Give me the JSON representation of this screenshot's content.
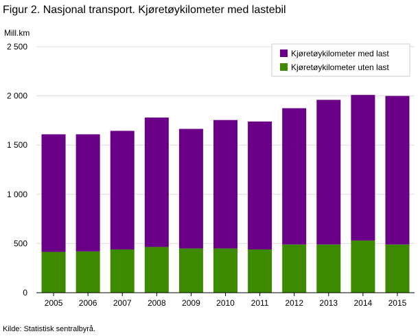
{
  "title": "Figur 2. Nasjonal transport. Kjøretøykilometer med lastebil",
  "source": "Kilde: Statistisk sentralbyrå.",
  "chart_data": {
    "type": "bar",
    "stacked": true,
    "title": "Figur 2. Nasjonal transport. Kjøretøykilometer med lastebil",
    "ylabel": "Mill.km",
    "xlabel": "",
    "ylim": [
      0,
      2500
    ],
    "yticks": [
      0,
      500,
      1000,
      1500,
      2000,
      2500
    ],
    "ytick_labels": [
      "0",
      "500",
      "1 000",
      "1 500",
      "2 000",
      "2 500"
    ],
    "grid": true,
    "legend_position": "top-right",
    "categories": [
      "2005",
      "2006",
      "2007",
      "2008",
      "2009",
      "2010",
      "2011",
      "2012",
      "2013",
      "2014",
      "2015"
    ],
    "series": [
      {
        "name": "Kjøretøykilometer uten last",
        "color": "#3d8a00",
        "values": [
          415,
          420,
          440,
          465,
          450,
          450,
          440,
          490,
          490,
          530,
          490
        ]
      },
      {
        "name": "Kjøretøykilometer med last",
        "color": "#6a0088",
        "values": [
          1195,
          1190,
          1205,
          1315,
          1215,
          1305,
          1300,
          1385,
          1470,
          1480,
          1510
        ]
      }
    ],
    "legend_order": [
      "Kjøretøykilometer med last",
      "Kjøretøykilometer uten last"
    ]
  }
}
